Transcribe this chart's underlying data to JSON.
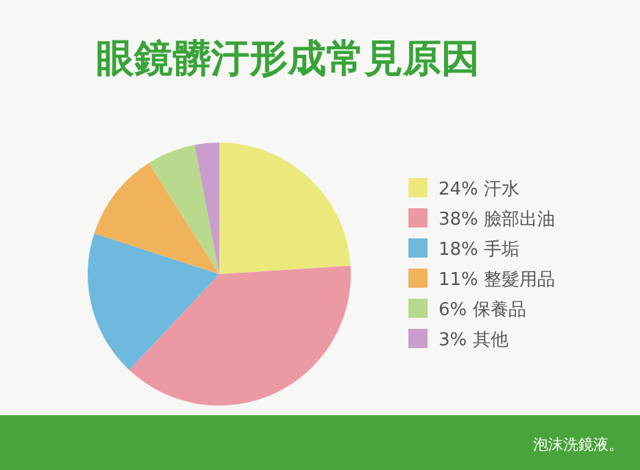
{
  "chart_data": {
    "type": "pie",
    "title": "眼鏡髒汙形成常見原因",
    "categories": [
      "汗水",
      "臉部出油",
      "手垢",
      "整髮用品",
      "保養品",
      "其他"
    ],
    "values": [
      24,
      38,
      18,
      11,
      6,
      3
    ],
    "value_labels": [
      "24%",
      "38%",
      "18%",
      "11%",
      "6%",
      "3%"
    ],
    "colors": [
      "#ece97c",
      "#eb9aa4",
      "#6fb9de",
      "#f0b35c",
      "#b9d98d",
      "#c99dcc"
    ],
    "legend": "right",
    "annotations": [
      "泡沫洗鏡液。"
    ]
  }
}
